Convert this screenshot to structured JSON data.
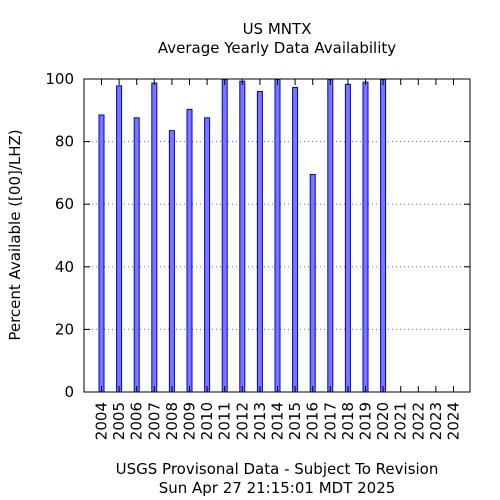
{
  "chart_data": {
    "type": "bar",
    "title": "US MNTX",
    "subtitle": "Average Yearly Data Availability",
    "xlabel": "",
    "ylabel": "Percent Available ([00]/LHZ)",
    "footer_line1": "USGS Provisonal Data - Subject To Revision",
    "footer_line2": "Sun Apr 27 21:15:01 MDT 2025",
    "ylim": [
      0,
      100
    ],
    "yticks": [
      0,
      20,
      40,
      60,
      80,
      100
    ],
    "grid": true,
    "categories": [
      "2004",
      "2005",
      "2006",
      "2007",
      "2008",
      "2009",
      "2010",
      "2011",
      "2012",
      "2013",
      "2014",
      "2015",
      "2016",
      "2017",
      "2018",
      "2019",
      "2020",
      "2021",
      "2022",
      "2023",
      "2024"
    ],
    "values": [
      88.5,
      97.8,
      87.6,
      98.7,
      83.5,
      90.3,
      87.6,
      99.9,
      99.3,
      96.0,
      99.9,
      97.3,
      69.5,
      99.9,
      98.3,
      99.0,
      99.9,
      null,
      null,
      null,
      null
    ],
    "bar_color": "#7777ff",
    "bar_edge_color": "#0000cc",
    "grid_color": "#777777"
  }
}
